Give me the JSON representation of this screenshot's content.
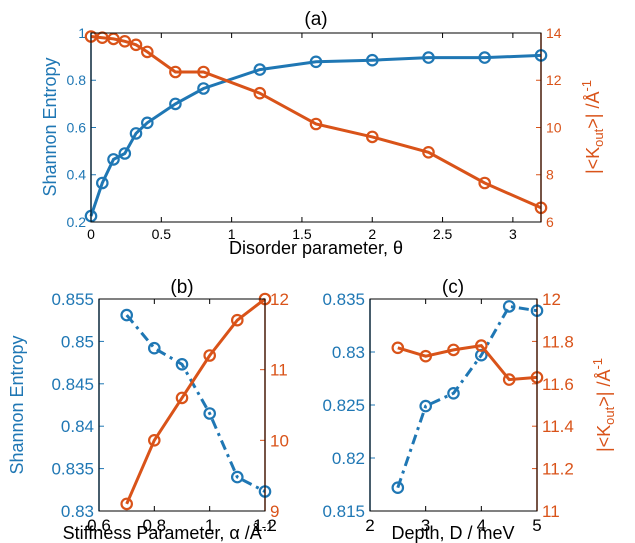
{
  "colors": {
    "blue": "#1f77b4",
    "orange": "#d95319",
    "axis": "#000000"
  },
  "chart_data": [
    {
      "panel_label": "(a)",
      "type": "line",
      "xlabel": "Disorder parameter, θ",
      "ylabel_left": "Shannon Entropy",
      "ylabel_right": "|<K",
      "ylabel_right_sub": "out",
      "ylabel_right_tail": ">| /Å",
      "ylabel_right_sup": "-1",
      "xlim": [
        0,
        3.2
      ],
      "ylim_left": [
        0.2,
        1.0
      ],
      "ylim_right": [
        6,
        14
      ],
      "x_ticks": [
        "0",
        "0.5",
        "1",
        "1.5",
        "2",
        "2.5",
        "3"
      ],
      "x_tick_values": [
        0,
        0.5,
        1,
        1.5,
        2,
        2.5,
        3
      ],
      "y_left_ticks": [
        "0.2",
        "0.4",
        "0.6",
        "0.8",
        "1"
      ],
      "y_left_tick_values": [
        0.2,
        0.4,
        0.6,
        0.8,
        1.0
      ],
      "y_right_ticks": [
        "6",
        "8",
        "10",
        "12",
        "14"
      ],
      "y_right_tick_values": [
        6,
        8,
        10,
        12,
        14
      ],
      "series": [
        {
          "axis": "left",
          "color": "blue",
          "style": "solid",
          "x": [
            0,
            0.08,
            0.16,
            0.24,
            0.32,
            0.4,
            0.6,
            0.8,
            1.2,
            1.6,
            2.0,
            2.4,
            2.8,
            3.2
          ],
          "y": [
            0.225,
            0.365,
            0.465,
            0.49,
            0.575,
            0.62,
            0.7,
            0.765,
            0.845,
            0.878,
            0.885,
            0.896,
            0.896,
            0.905
          ]
        },
        {
          "axis": "right",
          "color": "orange",
          "style": "solid",
          "x": [
            0,
            0.08,
            0.16,
            0.24,
            0.32,
            0.4,
            0.6,
            0.8,
            1.2,
            1.6,
            2.0,
            2.4,
            2.8,
            3.2
          ],
          "y": [
            13.85,
            13.8,
            13.75,
            13.65,
            13.5,
            13.2,
            12.35,
            12.35,
            11.45,
            10.15,
            9.6,
            8.95,
            7.65,
            6.6
          ]
        }
      ]
    },
    {
      "panel_label": "(b)",
      "type": "line",
      "xlabel": "Stiffness Parameter, α /Å",
      "xlabel_sup": "-1",
      "ylabel_left": "Shannon Entropy",
      "xlim": [
        0.6,
        1.2
      ],
      "ylim_left": [
        0.83,
        0.855
      ],
      "ylim_right": [
        9,
        12
      ],
      "x_ticks": [
        "0.6",
        "0.8",
        "1",
        "1.2"
      ],
      "x_tick_values": [
        0.6,
        0.8,
        1.0,
        1.2
      ],
      "y_left_ticks": [
        "0.83",
        "0.835",
        "0.84",
        "0.845",
        "0.85",
        "0.855"
      ],
      "y_left_tick_values": [
        0.83,
        0.835,
        0.84,
        0.845,
        0.85,
        0.855
      ],
      "y_right_ticks": [
        "9",
        "10",
        "11",
        "12"
      ],
      "y_right_tick_values": [
        9,
        10,
        11,
        12
      ],
      "series": [
        {
          "axis": "left",
          "color": "blue",
          "style": "dashdot",
          "x": [
            0.7,
            0.8,
            0.9,
            1.0,
            1.1,
            1.2
          ],
          "y": [
            0.8531,
            0.8492,
            0.8473,
            0.8415,
            0.834,
            0.8323
          ]
        },
        {
          "axis": "right",
          "color": "orange",
          "style": "solid",
          "x": [
            0.7,
            0.8,
            0.9,
            1.0,
            1.1,
            1.2
          ],
          "y": [
            9.1,
            10.0,
            10.6,
            11.2,
            11.7,
            12.0
          ]
        }
      ]
    },
    {
      "panel_label": "(c)",
      "type": "line",
      "xlabel": "Depth, D /  meV",
      "ylabel_right": "|<K",
      "ylabel_right_sub": "out",
      "ylabel_right_tail": ">| /Å",
      "ylabel_right_sup": "-1",
      "xlim": [
        2,
        5
      ],
      "ylim_left": [
        0.815,
        0.835
      ],
      "ylim_right": [
        11,
        12
      ],
      "x_ticks": [
        "2",
        "3",
        "4",
        "5"
      ],
      "x_tick_values": [
        2,
        3,
        4,
        5
      ],
      "y_left_ticks": [
        "0.815",
        "0.82",
        "0.825",
        "0.83",
        "0.835"
      ],
      "y_left_tick_values": [
        0.815,
        0.82,
        0.825,
        0.83,
        0.835
      ],
      "y_right_ticks": [
        "11",
        "11.2",
        "11.4",
        "11.6",
        "11.8",
        "12"
      ],
      "y_right_tick_values": [
        11,
        11.2,
        11.4,
        11.6,
        11.8,
        12
      ],
      "series": [
        {
          "axis": "left",
          "color": "blue",
          "style": "dashdot",
          "x": [
            2.5,
            3.0,
            3.5,
            4.0,
            4.5,
            5.0
          ],
          "y": [
            0.8172,
            0.8249,
            0.8261,
            0.8297,
            0.8343,
            0.8339
          ]
        },
        {
          "axis": "right",
          "color": "orange",
          "style": "solid",
          "x": [
            2.5,
            3.0,
            3.5,
            4.0,
            4.5,
            5.0
          ],
          "y": [
            11.77,
            11.73,
            11.76,
            11.78,
            11.62,
            11.63
          ]
        }
      ]
    }
  ]
}
